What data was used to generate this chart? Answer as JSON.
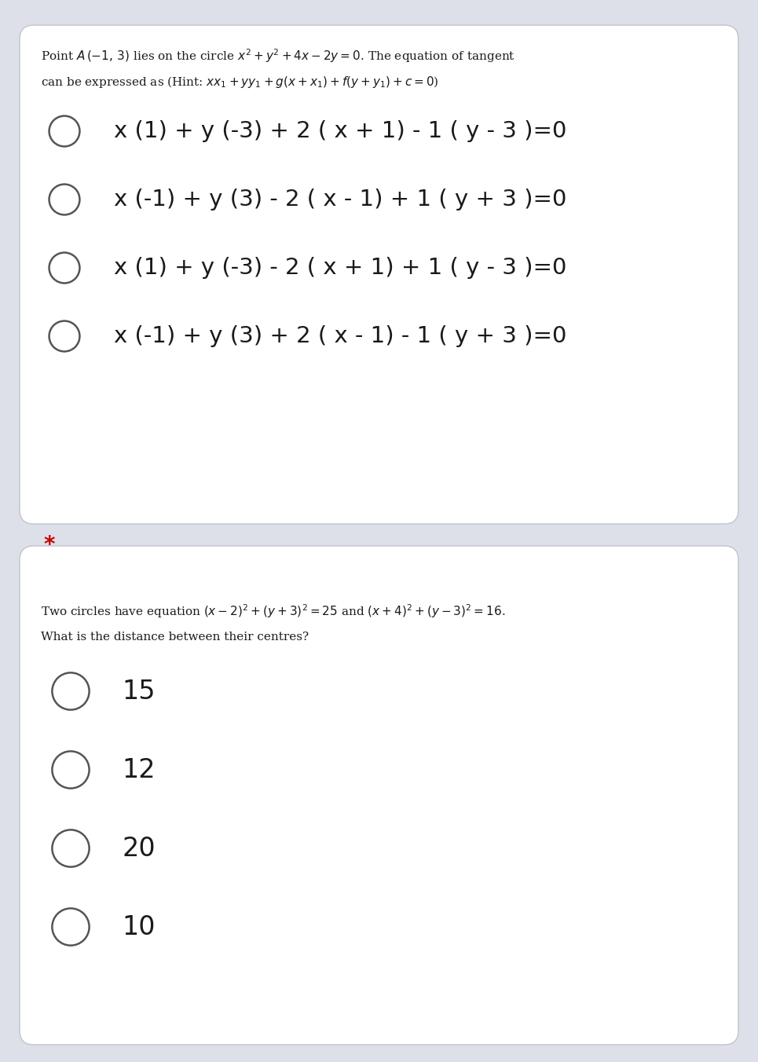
{
  "bg_color": "#dde0e8",
  "card_color": "#ffffff",
  "card_border_color": "#c0c4cc",
  "q1_question_line1": "Point $A\\,(-1,\\,3)$ lies on the circle $x^2+y^2+4x-2y=0$. The equation of tangent",
  "q1_question_line2": "can be expressed as (Hint: $xx_1+yy_1+g(x+x_1)+f(y+y_1)+c=0$)",
  "q1_options": [
    "x (1) + y (-3) + 2 ( x + 1) - 1 ( y - 3 )=0",
    "x (-1) + y (3) - 2 ( x - 1) + 1 ( y + 3 )=0",
    "x (1) + y (-3) - 2 ( x + 1) + 1 ( y - 3 )=0",
    "x (-1) + y (3) + 2 ( x - 1) - 1 ( y + 3 )=0"
  ],
  "star_color": "#cc0000",
  "q2_question_line1": "Two circles have equation $(x-2)^2+(y+3)^2=25$ and $(x+4)^2+(y-3)^2=16$.",
  "q2_question_line2": "What is the distance between their centres?",
  "q2_options": [
    "15",
    "12",
    "20",
    "10"
  ],
  "circle_edge_color": "#555555",
  "option_text_color": "#1a1a1a",
  "question_text_color": "#1a1a1a",
  "font_size_question": 11.0,
  "font_size_option_q1": 21,
  "font_size_option_q2": 24,
  "font_size_star": 20,
  "radio_lw": 1.8
}
